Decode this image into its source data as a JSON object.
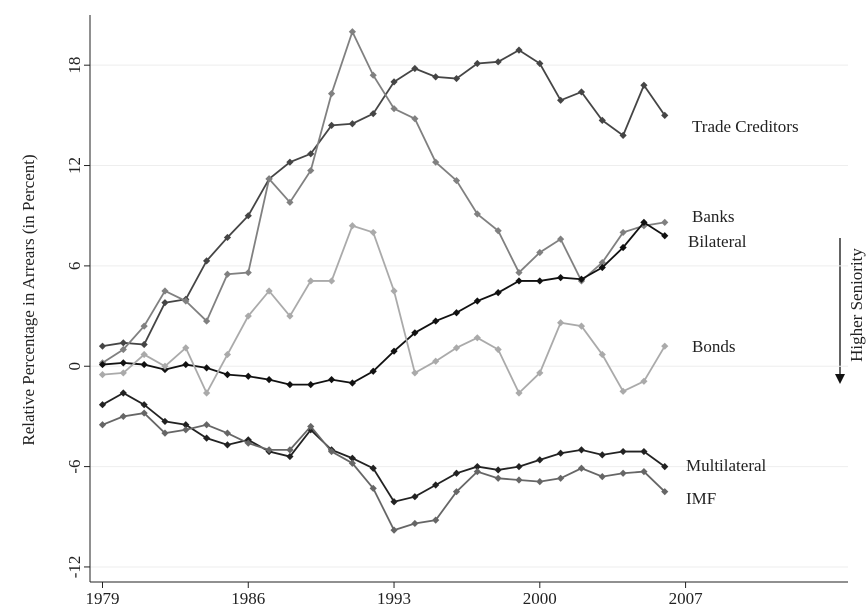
{
  "chart_data": {
    "type": "line",
    "y_label": "Relative Percentage in Arrears (in Percent)",
    "annotation": "Higher Seniority",
    "x": [
      1979,
      1980,
      1981,
      1982,
      1983,
      1984,
      1985,
      1986,
      1987,
      1988,
      1989,
      1990,
      1991,
      1992,
      1993,
      1994,
      1995,
      1996,
      1997,
      1998,
      1999,
      2000,
      2001,
      2002,
      2003,
      2004,
      2005,
      2006
    ],
    "xlim": [
      1978.4,
      2014.8
    ],
    "xticks": [
      1979,
      1986,
      1993,
      2000,
      2007
    ],
    "ylim": [
      -12.9,
      21
    ],
    "yticks": [
      -12,
      -6,
      0,
      6,
      12,
      18
    ],
    "grid": true,
    "series": [
      {
        "name": "Trade Creditors",
        "color": "#454545",
        "values": [
          1.2,
          1.4,
          1.3,
          3.8,
          4.0,
          6.3,
          7.7,
          9.0,
          11.2,
          12.2,
          12.7,
          14.4,
          14.5,
          15.1,
          17.0,
          17.8,
          17.3,
          17.2,
          18.1,
          18.2,
          18.9,
          18.1,
          15.9,
          16.4,
          14.7,
          13.8,
          16.8,
          15.0
        ]
      },
      {
        "name": "Banks",
        "color": "#808080",
        "values": [
          0.2,
          1.0,
          2.4,
          4.5,
          3.9,
          2.7,
          5.5,
          5.6,
          11.2,
          9.8,
          11.7,
          16.3,
          20.0,
          17.4,
          15.4,
          14.8,
          12.2,
          11.1,
          9.1,
          8.1,
          5.6,
          6.8,
          7.6,
          5.1,
          6.2,
          8.0,
          8.4,
          8.6
        ]
      },
      {
        "name": "Bilateral",
        "color": "#111111",
        "values": [
          0.1,
          0.2,
          0.1,
          -0.2,
          0.1,
          -0.1,
          -0.5,
          -0.6,
          -0.8,
          -1.1,
          -1.1,
          -0.8,
          -1.0,
          -0.3,
          0.9,
          2.0,
          2.7,
          3.2,
          3.9,
          4.4,
          5.1,
          5.1,
          5.3,
          5.2,
          5.9,
          7.1,
          8.6,
          7.8
        ]
      },
      {
        "name": "Bonds",
        "color": "#aaaaaa",
        "values": [
          -0.5,
          -0.4,
          0.7,
          0.0,
          1.1,
          -1.6,
          0.7,
          3.0,
          4.5,
          3.0,
          5.1,
          5.1,
          8.4,
          8.0,
          4.5,
          -0.4,
          0.3,
          1.1,
          1.7,
          1.0,
          -1.6,
          -0.4,
          2.6,
          2.4,
          0.7,
          -1.5,
          -0.9,
          1.2
        ]
      },
      {
        "name": "Multilateral",
        "color": "#222222",
        "values": [
          -2.3,
          -1.6,
          -2.3,
          -3.3,
          -3.5,
          -4.3,
          -4.7,
          -4.4,
          -5.1,
          -5.4,
          -3.8,
          -5.0,
          -5.5,
          -6.1,
          -8.1,
          -7.8,
          -7.1,
          -6.4,
          -6.0,
          -6.2,
          -6.0,
          -5.6,
          -5.2,
          -5.0,
          -5.3,
          -5.1,
          -5.1,
          -6.0
        ]
      },
      {
        "name": "IMF",
        "color": "#666666",
        "values": [
          -3.5,
          -3.0,
          -2.8,
          -4.0,
          -3.8,
          -3.5,
          -4.0,
          -4.6,
          -5.0,
          -5.0,
          -3.6,
          -5.1,
          -5.8,
          -7.3,
          -9.8,
          -9.4,
          -9.2,
          -7.5,
          -6.3,
          -6.7,
          -6.8,
          -6.9,
          -6.7,
          -6.1,
          -6.6,
          -6.4,
          -6.3,
          -7.5
        ]
      }
    ]
  }
}
